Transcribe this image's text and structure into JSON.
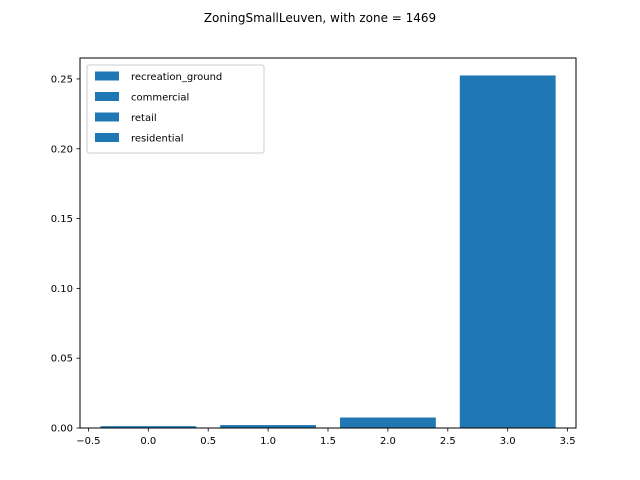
{
  "chart_data": {
    "type": "bar",
    "title": "ZoningSmallLeuven, with zone = 1469",
    "xlabel": "",
    "ylabel": "",
    "x": [
      0,
      1,
      2,
      3
    ],
    "bar_width": 0.8,
    "series": [
      {
        "name": "recreation_ground",
        "values": [
          0.0013,
          0,
          0,
          0
        ]
      },
      {
        "name": "commercial",
        "values": [
          0,
          0.0021,
          0,
          0
        ]
      },
      {
        "name": "retail",
        "values": [
          0,
          0,
          0.0075,
          0
        ]
      },
      {
        "name": "residential",
        "values": [
          0,
          0,
          0,
          0.2525
        ]
      }
    ],
    "xlim": [
      -0.57,
      3.57
    ],
    "ylim": [
      0,
      0.265
    ],
    "xticks": [
      -0.5,
      0.0,
      0.5,
      1.0,
      1.5,
      2.0,
      2.5,
      3.0,
      3.5
    ],
    "xtick_labels": [
      "−0.5",
      "0.0",
      "0.5",
      "1.0",
      "1.5",
      "2.0",
      "2.5",
      "3.0",
      "3.5"
    ],
    "yticks": [
      0.0,
      0.05,
      0.1,
      0.15,
      0.2,
      0.25
    ],
    "ytick_labels": [
      "0.00",
      "0.05",
      "0.10",
      "0.15",
      "0.20",
      "0.25"
    ],
    "bar_color": "#1f77b4",
    "legend_position": "upper-left",
    "grid": false
  }
}
